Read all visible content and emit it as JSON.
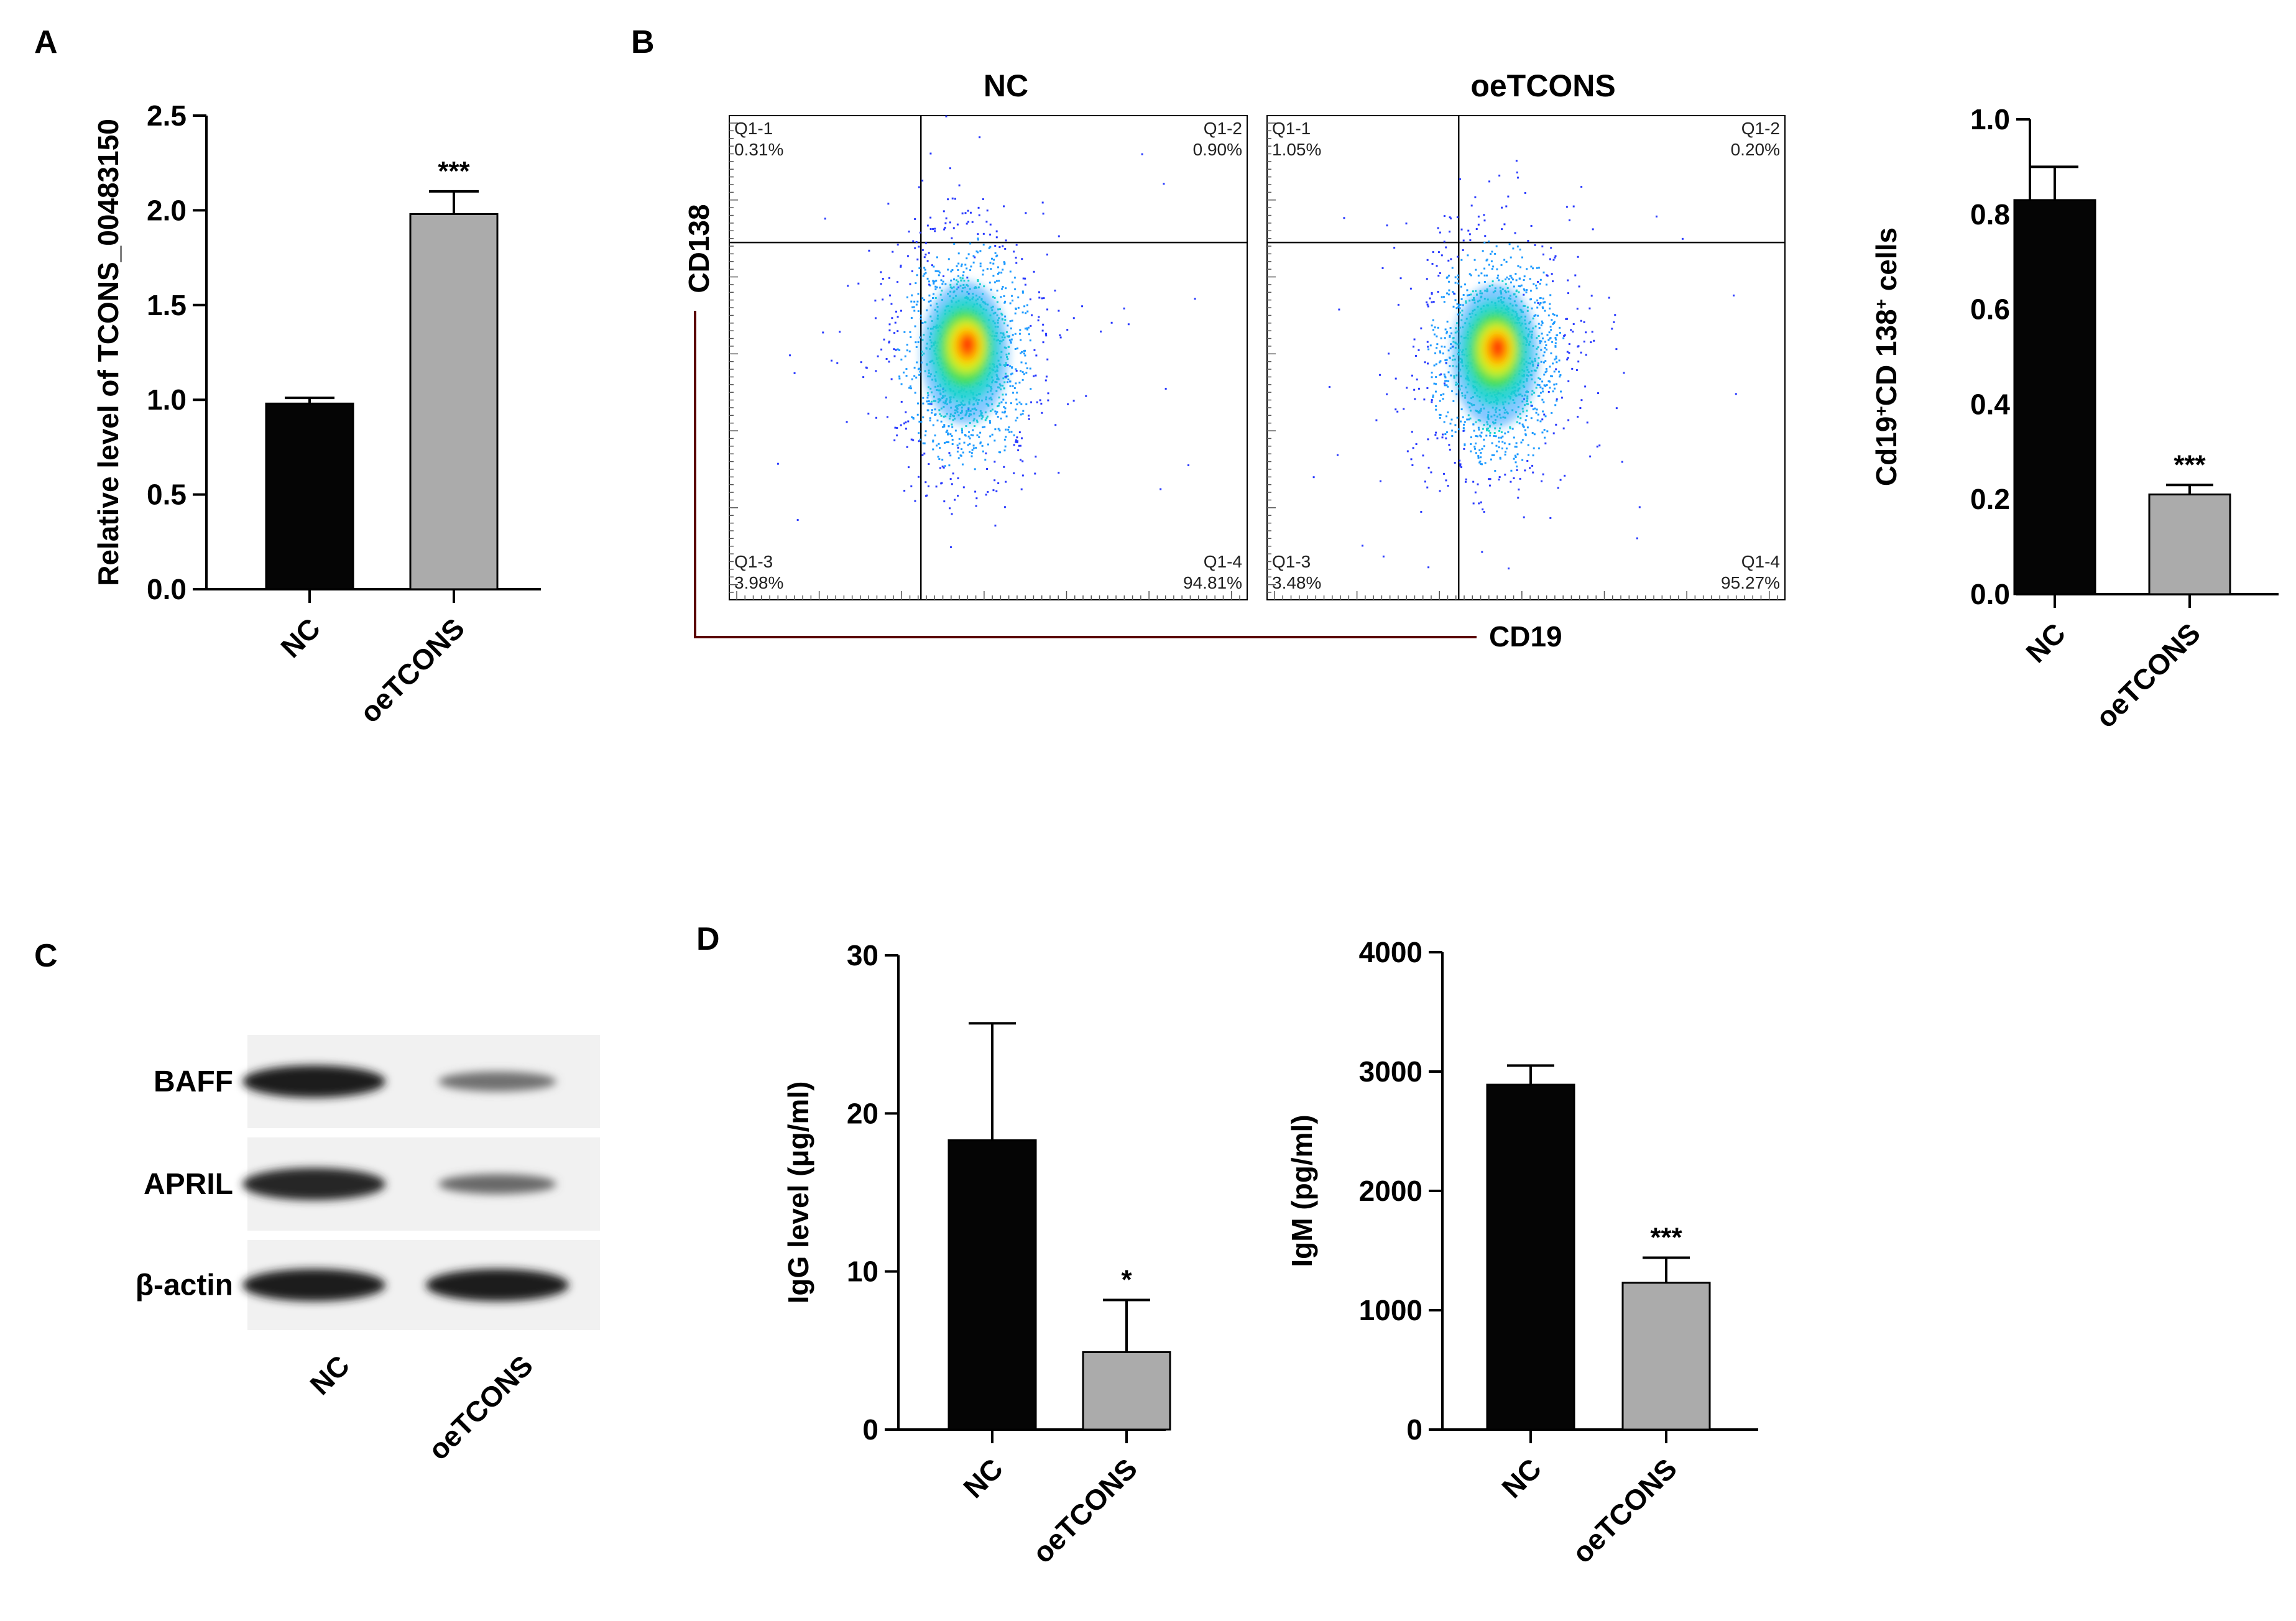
{
  "panels": {
    "A": "A",
    "B": "B",
    "C": "C",
    "D": "D"
  },
  "colors": {
    "nc_bar": "#050505",
    "oe_bar": "#ababab",
    "axis": "#000000",
    "facs_axis": "#5a0000"
  },
  "chart_data": [
    {
      "id": "A",
      "type": "bar",
      "categories": [
        "NC",
        "oeTCONS"
      ],
      "values": [
        0.98,
        1.98
      ],
      "errors": [
        0.03,
        0.12
      ],
      "ylabel": "Relative level of TCONS_00483150",
      "ylim": [
        0,
        2.5
      ],
      "yticks": [
        "0.0",
        "0.5",
        "1.0",
        "1.5",
        "2.0",
        "2.5"
      ],
      "significance": [
        "",
        "***"
      ],
      "colors": [
        "#050505",
        "#ababab"
      ]
    },
    {
      "id": "B-bar",
      "type": "bar",
      "categories": [
        "NC",
        "oeTCONS"
      ],
      "values": [
        0.83,
        0.21
      ],
      "errors": [
        0.07,
        0.02
      ],
      "ylabel_parts": [
        "Cd19",
        "+",
        "CD 138",
        "+",
        " cells"
      ],
      "ylim": [
        0,
        1.0
      ],
      "yticks": [
        "0.0",
        "0.2",
        "0.4",
        "0.6",
        "0.8",
        "1.0"
      ],
      "significance": [
        "",
        "***"
      ],
      "colors": [
        "#050505",
        "#ababab"
      ]
    },
    {
      "id": "D-IgG",
      "type": "bar",
      "categories": [
        "NC",
        "oeTCONS"
      ],
      "values": [
        18.3,
        4.9
      ],
      "errors": [
        7.4,
        3.3
      ],
      "ylabel": "IgG level (μg/ml)",
      "ylim": [
        0,
        30
      ],
      "yticks": [
        "0",
        "10",
        "20",
        "30"
      ],
      "significance": [
        "",
        "*"
      ],
      "colors": [
        "#050505",
        "#ababab"
      ]
    },
    {
      "id": "D-IgM",
      "type": "bar",
      "categories": [
        "NC",
        "oeTCONS"
      ],
      "values": [
        2890,
        1230
      ],
      "errors": [
        160,
        210
      ],
      "ylabel": "IgM (pg/ml)",
      "ylim": [
        0,
        4000
      ],
      "yticks": [
        "0",
        "1000",
        "2000",
        "3000",
        "4000"
      ],
      "significance": [
        "",
        "***"
      ],
      "colors": [
        "#050505",
        "#ababab"
      ]
    }
  ],
  "flow": {
    "x_axis_label": "CD19",
    "y_axis_label": "CD138",
    "plots": [
      {
        "title": "NC",
        "quadrants": {
          "q1_label": "Q1-1",
          "q1_value": "0.31%",
          "q2_label": "Q1-2",
          "q2_value": "0.90%",
          "q3_label": "Q1-3",
          "q3_value": "3.98%",
          "q4_label": "Q1-4",
          "q4_value": "94.81%"
        }
      },
      {
        "title": "oeTCONS",
        "quadrants": {
          "q1_label": "Q1-1",
          "q1_value": "1.05%",
          "q2_label": "Q1-2",
          "q2_value": "0.20%",
          "q3_label": "Q1-3",
          "q3_value": "3.48%",
          "q4_label": "Q1-4",
          "q4_value": "95.27%"
        }
      }
    ]
  },
  "western": {
    "proteins": [
      "BAFF",
      "APRIL",
      "β-actin"
    ],
    "lanes": [
      "NC",
      "oeTCONS"
    ],
    "intensity": [
      [
        1.0,
        0.45
      ],
      [
        0.95,
        0.5
      ],
      [
        1.0,
        1.0
      ]
    ]
  }
}
